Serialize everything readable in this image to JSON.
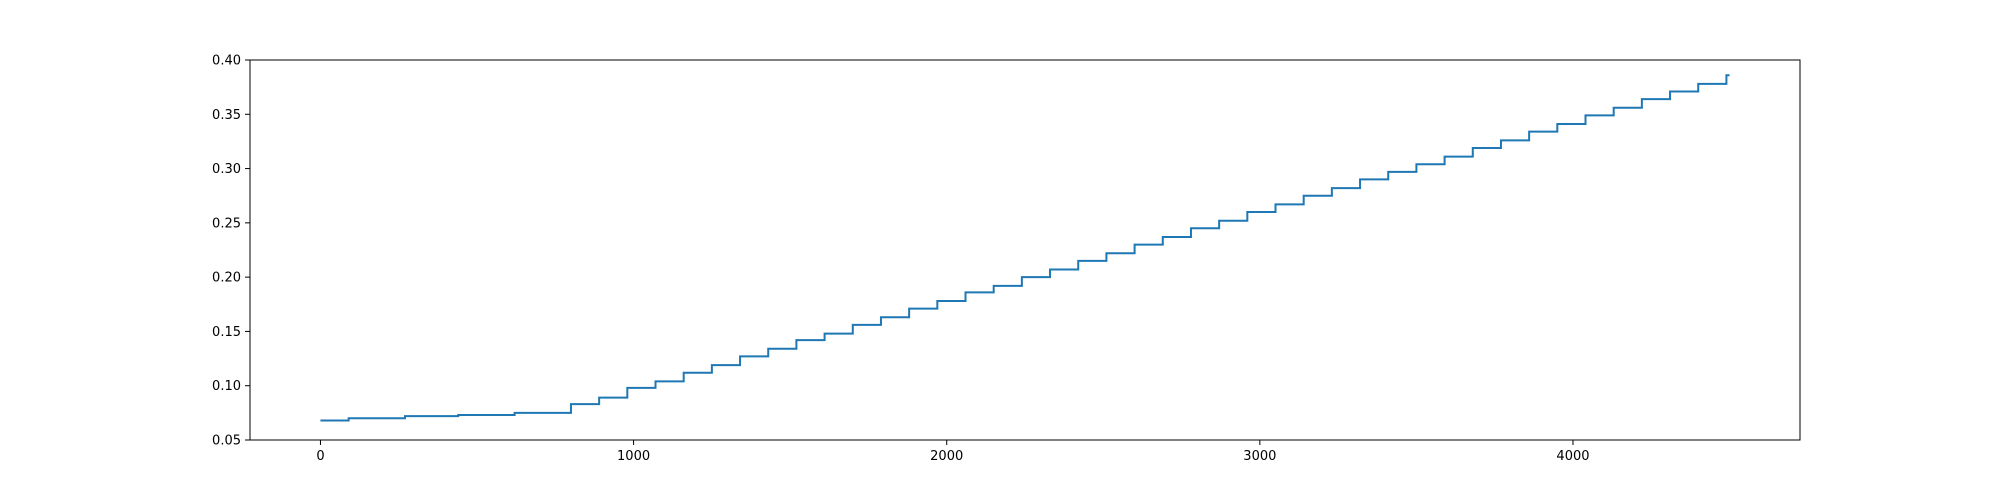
{
  "chart_data": {
    "type": "line",
    "title": "",
    "xlabel": "",
    "ylabel": "",
    "xlim": [
      -225,
      4725
    ],
    "ylim": [
      0.05,
      0.4
    ],
    "xticks": [
      0,
      1000,
      2000,
      3000,
      4000
    ],
    "xtick_labels": [
      "0",
      "1000",
      "2000",
      "3000",
      "4000"
    ],
    "yticks": [
      0.05,
      0.1,
      0.15,
      0.2,
      0.25,
      0.3,
      0.35,
      0.4
    ],
    "ytick_labels": [
      "0.05",
      "0.10",
      "0.15",
      "0.20",
      "0.25",
      "0.30",
      "0.35",
      "0.40"
    ],
    "grid": false,
    "legend": "none",
    "series": [
      {
        "color": "#1f77b4",
        "x": [
          0,
          90,
          90,
          270,
          270,
          440,
          440,
          620,
          620,
          800,
          800,
          890,
          890,
          980,
          980,
          1070,
          1070,
          1160,
          1160,
          1250,
          1250,
          1340,
          1340,
          1430,
          1430,
          1520,
          1520,
          1610,
          1610,
          1700,
          1700,
          1790,
          1790,
          1880,
          1880,
          1970,
          1970,
          2060,
          2060,
          2150,
          2150,
          2240,
          2240,
          2330,
          2330,
          2420,
          2420,
          2510,
          2510,
          2600,
          2600,
          2690,
          2690,
          2780,
          2780,
          2870,
          2870,
          2960,
          2960,
          3050,
          3050,
          3140,
          3140,
          3230,
          3230,
          3320,
          3320,
          3410,
          3410,
          3500,
          3500,
          3590,
          3590,
          3680,
          3680,
          3770,
          3770,
          3860,
          3860,
          3950,
          3950,
          4040,
          4040,
          4130,
          4130,
          4220,
          4220,
          4310,
          4310,
          4400,
          4400,
          4490,
          4490,
          4500
        ],
        "y": [
          0.068,
          0.068,
          0.07,
          0.07,
          0.072,
          0.072,
          0.073,
          0.073,
          0.075,
          0.075,
          0.083,
          0.083,
          0.089,
          0.089,
          0.098,
          0.098,
          0.104,
          0.104,
          0.112,
          0.112,
          0.119,
          0.119,
          0.127,
          0.127,
          0.134,
          0.134,
          0.142,
          0.142,
          0.148,
          0.148,
          0.156,
          0.156,
          0.163,
          0.163,
          0.171,
          0.171,
          0.178,
          0.178,
          0.186,
          0.186,
          0.192,
          0.192,
          0.2,
          0.2,
          0.207,
          0.207,
          0.215,
          0.215,
          0.222,
          0.222,
          0.23,
          0.23,
          0.237,
          0.237,
          0.245,
          0.245,
          0.252,
          0.252,
          0.26,
          0.26,
          0.267,
          0.267,
          0.275,
          0.275,
          0.282,
          0.282,
          0.29,
          0.29,
          0.297,
          0.297,
          0.304,
          0.304,
          0.311,
          0.311,
          0.319,
          0.319,
          0.326,
          0.326,
          0.334,
          0.334,
          0.341,
          0.341,
          0.349,
          0.349,
          0.356,
          0.356,
          0.364,
          0.364,
          0.371,
          0.371,
          0.378,
          0.378,
          0.386,
          0.386
        ]
      }
    ]
  }
}
